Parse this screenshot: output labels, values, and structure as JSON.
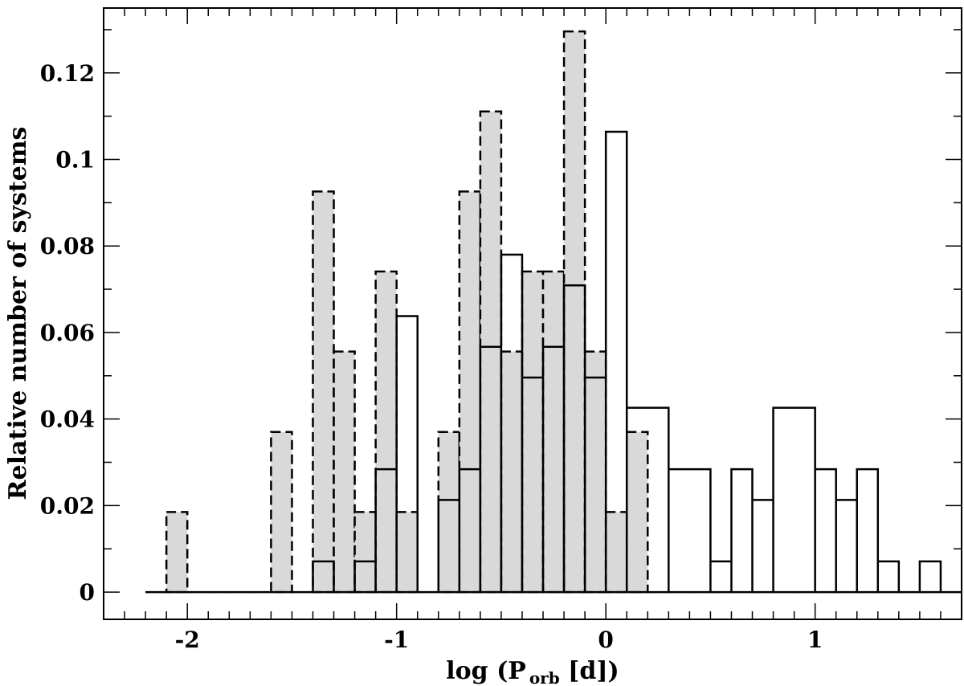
{
  "chart_data": {
    "type": "bar",
    "xlabel": "log (P",
    "xlabel_sub": "orb",
    "xlabel_tail": " [d])",
    "ylabel": "Relative number of systems",
    "xlim": [
      -2.4,
      1.7
    ],
    "ylim": [
      -0.0063,
      0.135
    ],
    "bin_width": 0.1,
    "x_ticks": [
      -2,
      -1,
      0,
      1
    ],
    "x_tick_labels": [
      "-2",
      "-1",
      "0",
      "1"
    ],
    "y_ticks": [
      0,
      0.02,
      0.04,
      0.06,
      0.08,
      0.1,
      0.12
    ],
    "y_tick_labels": [
      "0",
      "0.02",
      "0.04",
      "0.06",
      "0.08",
      "0.1",
      "0.12"
    ],
    "grid": false,
    "series": [
      {
        "style": "filled-dashed",
        "fill": "#d9d9d9",
        "stroke": "#000000",
        "x_start": -2.2,
        "values": [
          0,
          0.0185,
          0,
          0,
          0,
          0,
          0.037,
          0,
          0.0926,
          0.0556,
          0.0185,
          0.0741,
          0.0185,
          0,
          0.037,
          0.0926,
          0.1111,
          0.0556,
          0.0741,
          0.0741,
          0.1296,
          0.0556,
          0.0185,
          0.037,
          0,
          0,
          0,
          0,
          0,
          0,
          0,
          0,
          0,
          0,
          0,
          0,
          0,
          0
        ]
      },
      {
        "style": "open-solid",
        "fill": "none",
        "stroke": "#000000",
        "x_start": -2.2,
        "values": [
          0,
          0,
          0,
          0,
          0,
          0,
          0,
          0,
          0.0071,
          0,
          0.0071,
          0.0284,
          0.0638,
          0,
          0.0213,
          0.0284,
          0.0567,
          0.078,
          0.0496,
          0.0567,
          0.0709,
          0.0496,
          0.1064,
          0.0426,
          0.0426,
          0.0284,
          0.0284,
          0.0071,
          0.0284,
          0.0213,
          0.0426,
          0.0426,
          0.0284,
          0.0213,
          0.0284,
          0.0071,
          0,
          0.0071,
          0
        ]
      }
    ]
  }
}
